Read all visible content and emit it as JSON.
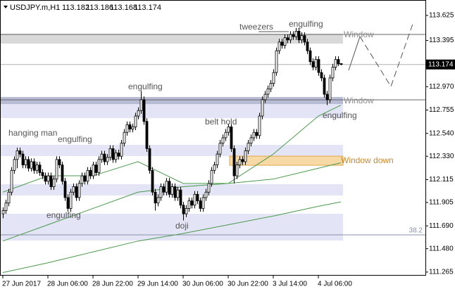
{
  "chart_data": {
    "type": "candlestick",
    "symbol": "USDJPY.m,H1",
    "header_ohlc": [
      113.182,
      113.186,
      113.168,
      113.174
    ],
    "current_price": 113.174,
    "ylim": [
      111.232,
      113.767
    ],
    "yticks": [
      113.625,
      113.395,
      {
        "value": 112.97,
        "label": "112.970"
      },
      112.755,
      {
        "value": 112.54,
        "label": "112.540"
      },
      {
        "value": 112.33,
        "label": "112.330"
      },
      112.115,
      111.905,
      {
        "value": 111.69,
        "label": "111.690"
      },
      {
        "value": 111.48,
        "label": "111.480"
      },
      111.265
    ],
    "categories": [
      "27 Jun 2017",
      null,
      null,
      null,
      null,
      null,
      null,
      null,
      null,
      null,
      null,
      null,
      null,
      null,
      null,
      null,
      "28 Jun 06:00",
      null,
      null,
      null,
      null,
      null,
      null,
      null,
      null,
      null,
      null,
      null,
      null,
      null,
      null,
      null,
      "28 Jun 22:00",
      null,
      null,
      null,
      null,
      null,
      null,
      null,
      null,
      null,
      null,
      null,
      null,
      null,
      null,
      null,
      "29 Jun 14:00",
      null,
      null,
      null,
      null,
      null,
      null,
      null,
      null,
      null,
      null,
      null,
      null,
      null,
      null,
      null,
      "30 Jun 06:00",
      null,
      null,
      null,
      null,
      null,
      null,
      null,
      null,
      null,
      null,
      null,
      null,
      null,
      null,
      null,
      "30 Jun 22:00",
      null,
      null,
      null,
      null,
      null,
      null,
      null,
      null,
      null,
      null,
      null,
      null,
      null,
      null,
      null,
      "3 Jul 14:00",
      null,
      null,
      null,
      null,
      null,
      null,
      null,
      null,
      null,
      null,
      null,
      null,
      null,
      null,
      null,
      "4 Jul 06:00",
      null,
      null,
      null,
      null,
      null,
      null,
      null,
      null
    ],
    "candles": [
      [
        111.8,
        111.86,
        111.76,
        111.83
      ],
      [
        111.83,
        111.93,
        111.8,
        111.9
      ],
      [
        111.9,
        112.03,
        111.87,
        112.0
      ],
      [
        112.0,
        112.23,
        111.97,
        112.2
      ],
      [
        112.2,
        112.33,
        112.17,
        112.3
      ],
      [
        112.3,
        112.41,
        112.22,
        112.38
      ],
      [
        112.38,
        112.41,
        112.32,
        112.35
      ],
      [
        112.35,
        112.38,
        112.22,
        112.25
      ],
      [
        112.25,
        112.33,
        112.22,
        112.3
      ],
      [
        112.3,
        112.33,
        112.19,
        112.22
      ],
      [
        112.22,
        112.31,
        112.19,
        112.28
      ],
      [
        112.28,
        112.31,
        112.17,
        112.2
      ],
      [
        112.2,
        112.28,
        112.17,
        112.25
      ],
      [
        112.25,
        112.28,
        112.15,
        112.18
      ],
      [
        112.18,
        112.21,
        112.12,
        112.15
      ],
      [
        112.15,
        112.18,
        112.07,
        112.1
      ],
      [
        112.1,
        112.18,
        112.07,
        112.15
      ],
      [
        112.15,
        112.18,
        112.02,
        112.05
      ],
      [
        112.05,
        112.15,
        112.02,
        112.12
      ],
      [
        112.12,
        112.33,
        112.09,
        112.3
      ],
      [
        112.3,
        112.33,
        112.22,
        112.25
      ],
      [
        112.25,
        112.28,
        112.07,
        112.1
      ],
      [
        112.1,
        112.13,
        111.92,
        111.95
      ],
      [
        111.95,
        111.98,
        111.82,
        111.85
      ],
      [
        111.85,
        112.03,
        111.82,
        112.0
      ],
      [
        112.0,
        112.08,
        111.97,
        112.05
      ],
      [
        112.05,
        112.08,
        111.92,
        111.95
      ],
      [
        111.95,
        112.11,
        111.92,
        112.08
      ],
      [
        112.08,
        112.18,
        112.05,
        112.15
      ],
      [
        112.15,
        112.18,
        112.07,
        112.1
      ],
      [
        112.1,
        112.23,
        112.07,
        112.2
      ],
      [
        112.2,
        112.23,
        112.12,
        112.15
      ],
      [
        112.15,
        112.28,
        112.12,
        112.25
      ],
      [
        112.25,
        112.28,
        112.15,
        112.18
      ],
      [
        112.18,
        112.33,
        112.15,
        112.3
      ],
      [
        112.3,
        112.38,
        112.27,
        112.35
      ],
      [
        112.35,
        112.38,
        112.25,
        112.28
      ],
      [
        112.28,
        112.35,
        112.25,
        112.32
      ],
      [
        112.32,
        112.43,
        112.29,
        112.4
      ],
      [
        112.4,
        112.43,
        112.27,
        112.3
      ],
      [
        112.3,
        112.39,
        112.27,
        112.36
      ],
      [
        112.36,
        112.39,
        112.3,
        112.33
      ],
      [
        112.33,
        112.48,
        112.3,
        112.45
      ],
      [
        112.45,
        112.58,
        112.42,
        112.55
      ],
      [
        112.55,
        112.65,
        112.52,
        112.62
      ],
      [
        112.62,
        112.65,
        112.55,
        112.58
      ],
      [
        112.58,
        112.63,
        112.55,
        112.6
      ],
      [
        112.6,
        112.73,
        112.57,
        112.7
      ],
      [
        112.7,
        112.78,
        112.67,
        112.75
      ],
      [
        112.75,
        112.93,
        112.72,
        112.85
      ],
      [
        112.85,
        112.88,
        112.62,
        112.65
      ],
      [
        112.65,
        112.68,
        112.37,
        112.4
      ],
      [
        112.4,
        112.43,
        112.17,
        112.2
      ],
      [
        112.2,
        112.23,
        111.97,
        112.0
      ],
      [
        112.0,
        112.03,
        111.83,
        111.9
      ],
      [
        111.9,
        111.98,
        111.87,
        111.95
      ],
      [
        111.95,
        112.08,
        111.92,
        112.05
      ],
      [
        112.05,
        112.08,
        111.97,
        112.0
      ],
      [
        112.0,
        112.13,
        111.97,
        112.1
      ],
      [
        112.1,
        112.13,
        111.95,
        111.98
      ],
      [
        111.98,
        112.08,
        111.95,
        112.05
      ],
      [
        112.05,
        112.08,
        111.92,
        111.95
      ],
      [
        111.95,
        112.05,
        111.92,
        112.02
      ],
      [
        112.02,
        112.05,
        111.85,
        111.88
      ],
      [
        111.88,
        111.91,
        111.74,
        111.8
      ],
      [
        111.8,
        111.88,
        111.77,
        111.85
      ],
      [
        111.85,
        111.95,
        111.82,
        111.92
      ],
      [
        111.92,
        111.95,
        111.85,
        111.88
      ],
      [
        111.88,
        112.01,
        111.85,
        111.98
      ],
      [
        111.98,
        112.01,
        111.89,
        111.92
      ],
      [
        111.92,
        111.95,
        111.82,
        111.85
      ],
      [
        111.85,
        111.98,
        111.82,
        111.95
      ],
      [
        111.95,
        112.03,
        111.92,
        112.0
      ],
      [
        112.0,
        112.11,
        111.97,
        112.08
      ],
      [
        112.08,
        112.23,
        112.05,
        112.2
      ],
      [
        112.2,
        112.28,
        112.17,
        112.25
      ],
      [
        112.25,
        112.38,
        112.22,
        112.35
      ],
      [
        112.35,
        112.48,
        112.32,
        112.45
      ],
      [
        112.45,
        112.53,
        112.42,
        112.5
      ],
      [
        112.5,
        112.58,
        112.47,
        112.55
      ],
      [
        112.55,
        112.63,
        112.52,
        112.6
      ],
      [
        112.6,
        112.63,
        112.37,
        112.4
      ],
      [
        112.4,
        112.43,
        112.08,
        112.15
      ],
      [
        112.15,
        112.28,
        112.12,
        112.25
      ],
      [
        112.25,
        112.33,
        112.22,
        112.3
      ],
      [
        112.3,
        112.33,
        112.25,
        112.28
      ],
      [
        112.28,
        112.41,
        112.25,
        112.38
      ],
      [
        112.38,
        112.48,
        112.35,
        112.45
      ],
      [
        112.45,
        112.53,
        112.42,
        112.5
      ],
      [
        112.5,
        112.58,
        112.47,
        112.55
      ],
      [
        112.55,
        112.58,
        112.49,
        112.52
      ],
      [
        112.52,
        112.73,
        112.49,
        112.7
      ],
      [
        112.7,
        112.88,
        112.67,
        112.85
      ],
      [
        112.85,
        112.93,
        112.82,
        112.9
      ],
      [
        112.9,
        112.98,
        112.87,
        112.95
      ],
      [
        112.95,
        113.03,
        112.92,
        113.0
      ],
      [
        113.0,
        113.13,
        112.97,
        113.1
      ],
      [
        113.1,
        113.33,
        113.07,
        113.3
      ],
      [
        113.3,
        113.41,
        113.27,
        113.38
      ],
      [
        113.38,
        113.41,
        113.32,
        113.35
      ],
      [
        113.35,
        113.45,
        113.32,
        113.42
      ],
      [
        113.42,
        113.45,
        113.37,
        113.4
      ],
      [
        113.4,
        113.48,
        113.37,
        113.45
      ],
      [
        113.45,
        113.48,
        113.4,
        113.43
      ],
      [
        113.43,
        113.51,
        113.4,
        113.48
      ],
      [
        113.48,
        113.51,
        113.37,
        113.4
      ],
      [
        113.4,
        113.47,
        113.37,
        113.44
      ],
      [
        113.44,
        113.47,
        113.35,
        113.38
      ],
      [
        113.38,
        113.41,
        113.27,
        113.3
      ],
      [
        113.3,
        113.33,
        113.17,
        113.2
      ],
      [
        113.2,
        113.23,
        113.12,
        113.15
      ],
      [
        113.15,
        113.25,
        113.12,
        113.22
      ],
      [
        113.22,
        113.25,
        113.07,
        113.1
      ],
      [
        113.1,
        113.13,
        113.02,
        113.05
      ],
      [
        113.05,
        113.08,
        112.87,
        112.9
      ],
      [
        112.9,
        112.93,
        112.8,
        112.85
      ],
      [
        112.85,
        113.08,
        112.82,
        113.05
      ],
      [
        113.05,
        113.18,
        113.02,
        113.15
      ],
      [
        113.15,
        113.25,
        113.12,
        113.22
      ],
      [
        113.22,
        113.25,
        113.16,
        113.18
      ],
      [
        113.182,
        113.186,
        113.168,
        113.174
      ]
    ],
    "moving_averages": [
      {
        "color": "#4a9a4a",
        "x": [
          0,
          16,
          32,
          48,
          64,
          80,
          96,
          112,
          120
        ],
        "values": [
          112.0,
          112.15,
          112.15,
          112.28,
          112.08,
          112.08,
          112.35,
          112.7,
          112.8
        ]
      },
      {
        "color": "#4a9a4a",
        "x": [
          0,
          16,
          32,
          48,
          64,
          80,
          96,
          112,
          120
        ],
        "values": [
          111.55,
          111.7,
          111.85,
          112.0,
          112.05,
          112.08,
          112.12,
          112.22,
          112.27
        ]
      },
      {
        "color": "#4a9a4a",
        "x": [
          0,
          16,
          32,
          48,
          64,
          80,
          96,
          112,
          120
        ],
        "values": [
          111.26,
          111.35,
          111.45,
          111.55,
          111.62,
          111.7,
          111.78,
          111.87,
          111.91
        ]
      }
    ],
    "zones": [
      {
        "from": 113.366,
        "to": 113.457,
        "color": "#d9d9d9",
        "start_index": 0
      },
      {
        "from": 112.681,
        "to": 112.875,
        "color": "#e3e4f6",
        "start_index": 0
      },
      {
        "from": 112.81,
        "to": 112.875,
        "color": "#b7bbd4",
        "start_index": 0
      },
      {
        "from": 112.331,
        "to": 112.435,
        "color": "#e3e4f6",
        "start_index": 0
      },
      {
        "from": 111.969,
        "to": 112.073,
        "color": "#e3e4f6",
        "start_index": 0
      },
      {
        "from": 111.555,
        "to": 111.801,
        "color": "#e3e4f6",
        "start_index": 0
      },
      {
        "from": 112.247,
        "to": 112.331,
        "color": "#f7d9a6",
        "start_index": 81
      }
    ],
    "levels": [
      {
        "value": 113.45,
        "color": "#666"
      },
      {
        "value": 112.849,
        "color": "#666"
      },
      {
        "value": 111.607,
        "color": "#8a8fa8",
        "label": 38.2
      }
    ],
    "annotations": [
      "hanging man",
      "engulfing",
      "engulfing",
      "engulfing",
      "belt hold",
      "doji",
      "tweezers",
      "engulfing",
      "engulfing",
      "Window",
      "Window",
      "Window down"
    ]
  }
}
